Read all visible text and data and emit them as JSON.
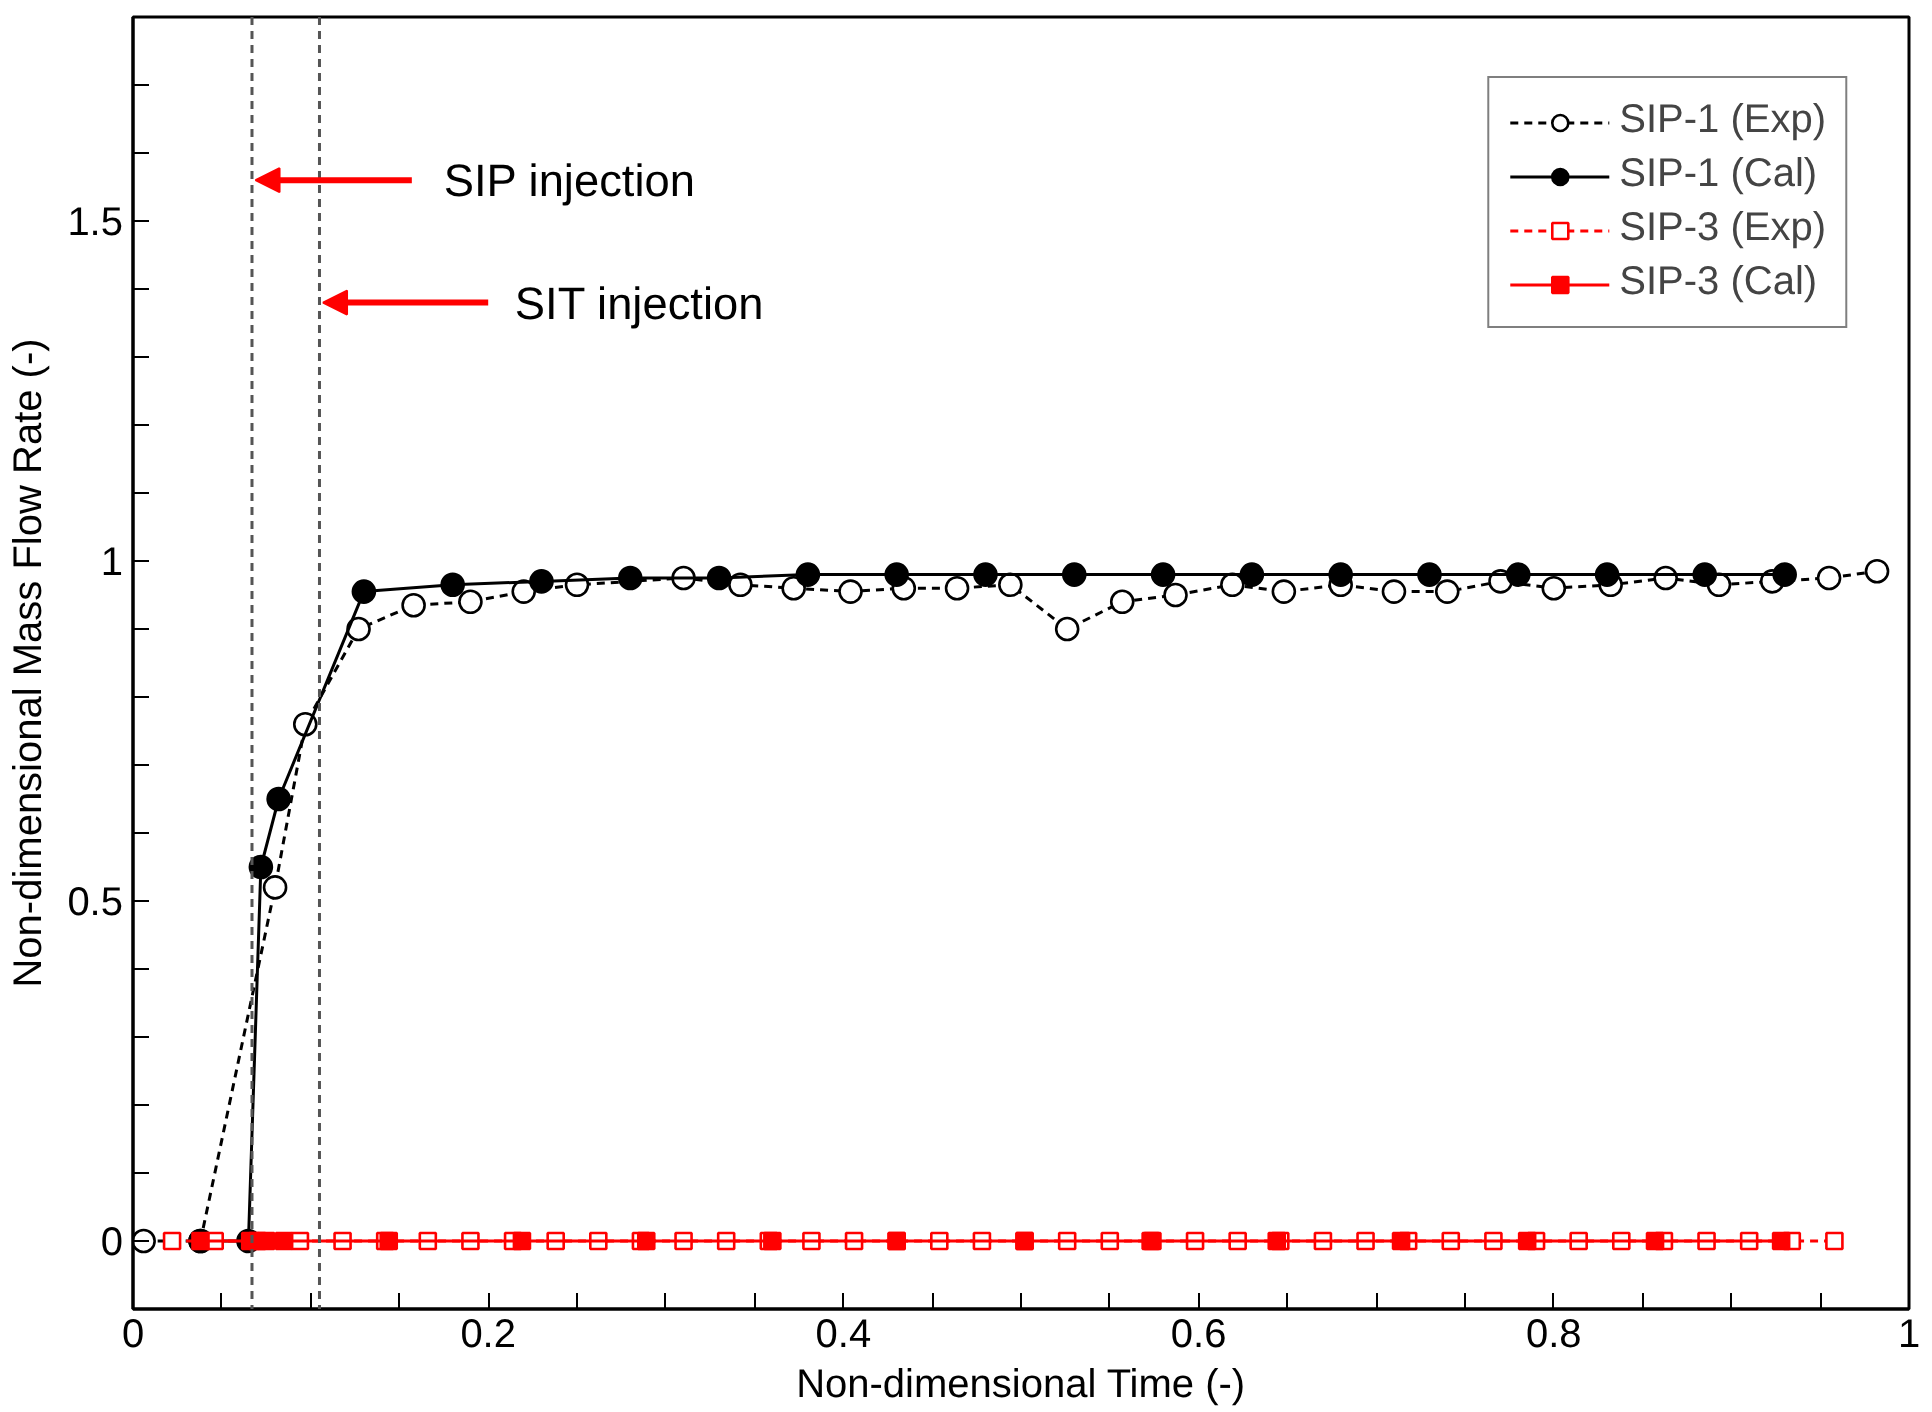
{
  "chart_data": {
    "type": "line",
    "xlabel": "Non-dimensional Time (-)",
    "ylabel": "Non-dimensional Mass Flow Rate (-)",
    "xlim": [
      0,
      1
    ],
    "ylim": [
      -0.1,
      1.8
    ],
    "xticks": [
      0,
      {
        "value": 0.05,
        "label": null
      },
      {
        "value": 0.1,
        "label": null
      },
      {
        "value": 0.15,
        "label": null
      },
      0.2,
      {
        "value": 0.25,
        "label": null
      },
      {
        "value": 0.3,
        "label": null
      },
      {
        "value": 0.35,
        "label": null
      },
      0.4,
      {
        "value": 0.45,
        "label": null
      },
      {
        "value": 0.5,
        "label": null
      },
      {
        "value": 0.55,
        "label": null
      },
      0.6,
      {
        "value": 0.65,
        "label": null
      },
      {
        "value": 0.7,
        "label": null
      },
      {
        "value": 0.75,
        "label": null
      },
      0.8,
      {
        "value": 0.85,
        "label": null
      },
      {
        "value": 0.9,
        "label": null
      },
      {
        "value": 0.95,
        "label": null
      },
      1
    ],
    "yticks": [
      0,
      {
        "value": 0.1,
        "label": null
      },
      {
        "value": 0.2,
        "label": null
      },
      {
        "value": 0.3,
        "label": null
      },
      {
        "value": 0.4,
        "label": null
      },
      0.5,
      {
        "value": 0.6,
        "label": null
      },
      {
        "value": 0.7,
        "label": null
      },
      {
        "value": 0.8,
        "label": null
      },
      {
        "value": 0.9,
        "label": null
      },
      1,
      {
        "value": 1.1,
        "label": null
      },
      {
        "value": 1.2,
        "label": null
      },
      {
        "value": 1.3,
        "label": null
      },
      {
        "value": 1.4,
        "label": null
      },
      1.5,
      {
        "value": 1.6,
        "label": null
      },
      {
        "value": 1.7,
        "label": null
      }
    ],
    "grid": false,
    "legend": "top right",
    "ref_lines": [
      {
        "axis": "x",
        "value": 0.067,
        "label": "SIP injection",
        "color": "#555555",
        "line_style": "dashed"
      },
      {
        "axis": "x",
        "value": 0.105,
        "label": "SIT injection",
        "color": "#555555",
        "line_style": "dashed"
      }
    ],
    "series": [
      {
        "name": "SIP-1 (Exp)",
        "color": "#000000",
        "marker": "circle",
        "line_style": "dashed",
        "x": [
          0.006,
          0.038,
          0.08,
          0.097,
          0.127,
          0.158,
          0.19,
          0.22,
          0.25,
          0.31,
          0.342,
          0.372,
          0.404,
          0.434,
          0.464,
          0.494,
          0.526,
          0.557,
          0.587,
          0.619,
          0.648,
          0.68,
          0.71,
          0.74,
          0.77,
          0.8,
          0.832,
          0.863,
          0.893,
          0.923,
          0.955,
          0.982
        ],
        "values": [
          0,
          0,
          0.52,
          0.76,
          0.9,
          0.935,
          0.94,
          0.955,
          0.965,
          0.975,
          0.965,
          0.96,
          0.955,
          0.96,
          0.96,
          0.965,
          0.9,
          0.94,
          0.95,
          0.965,
          0.955,
          0.965,
          0.955,
          0.955,
          0.97,
          0.96,
          0.965,
          0.975,
          0.965,
          0.97,
          0.975,
          0.985
        ]
      },
      {
        "name": "SIP-1 (Cal)",
        "color": "#000000",
        "marker": "circle",
        "line_style": "solid",
        "x": [
          0.038,
          0.065,
          0.072,
          0.082,
          0.13,
          0.18,
          0.23,
          0.28,
          0.33,
          0.38,
          0.43,
          0.48,
          0.53,
          0.58,
          0.63,
          0.68,
          0.73,
          0.78,
          0.83,
          0.885,
          0.93
        ],
        "values": [
          0,
          0,
          0.55,
          0.65,
          0.955,
          0.965,
          0.97,
          0.975,
          0.975,
          0.98,
          0.98,
          0.98,
          0.98,
          0.98,
          0.98,
          0.98,
          0.98,
          0.98,
          0.98,
          0.98,
          0.98
        ]
      },
      {
        "name": "SIP-3 (Exp)",
        "color": "#ff0000",
        "marker": "square",
        "line_style": "dashed",
        "x": [
          0.022,
          0.046,
          0.07,
          0.094,
          0.118,
          0.142,
          0.166,
          0.19,
          0.214,
          0.238,
          0.262,
          0.286,
          0.31,
          0.334,
          0.358,
          0.382,
          0.406,
          0.43,
          0.454,
          0.478,
          0.502,
          0.526,
          0.55,
          0.574,
          0.598,
          0.622,
          0.646,
          0.67,
          0.694,
          0.718,
          0.742,
          0.766,
          0.79,
          0.814,
          0.838,
          0.862,
          0.886,
          0.91,
          0.934,
          0.958
        ],
        "values": [
          0,
          0,
          0,
          0,
          0,
          0,
          0,
          0,
          0,
          0,
          0,
          0,
          0,
          0,
          0,
          0,
          0,
          0,
          0,
          0,
          0,
          0,
          0,
          0,
          0,
          0,
          0,
          0,
          0,
          0,
          0,
          0,
          0,
          0,
          0,
          0,
          0,
          0,
          0,
          0
        ]
      },
      {
        "name": "SIP-3 (Cal)",
        "color": "#ff0000",
        "marker": "square",
        "line_style": "solid",
        "x": [
          0.038,
          0.066,
          0.075,
          0.085,
          0.144,
          0.219,
          0.289,
          0.36,
          0.43,
          0.502,
          0.573,
          0.644,
          0.714,
          0.785,
          0.857,
          0.928
        ],
        "values": [
          0,
          0,
          0,
          0,
          0,
          0,
          0,
          0,
          0,
          0,
          0,
          0,
          0,
          0,
          0,
          0
        ]
      }
    ]
  }
}
